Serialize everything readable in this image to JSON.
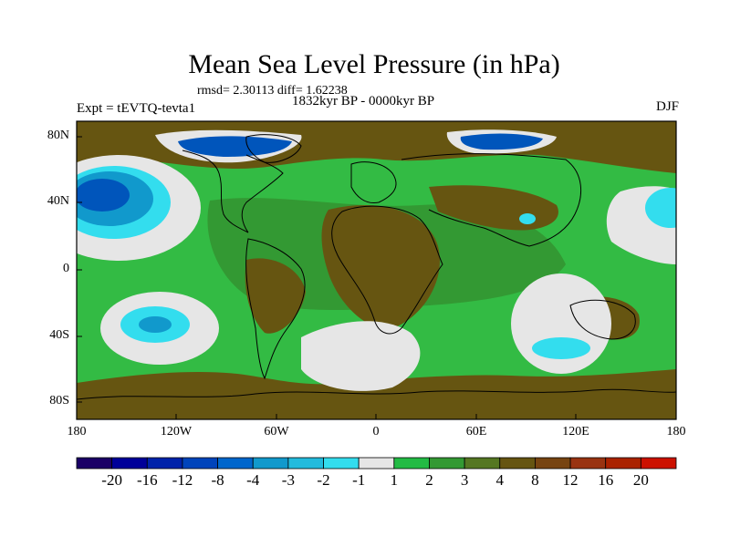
{
  "title": "Mean Sea Level Pressure (in hPa)",
  "stats_line": "rmsd= 2.30113 diff= 1.62238",
  "period": "1832kyr BP - 0000kyr BP",
  "experiment": "Expt = tEVTQ-tevta1",
  "season": "DJF",
  "lat_labels": [
    "80N",
    "40N",
    "0",
    "40S",
    "80S"
  ],
  "lon_labels": [
    "180",
    "120W",
    "60W",
    "0",
    "60E",
    "120E",
    "180"
  ],
  "colorbar": {
    "colors": [
      "#1a0066",
      "#000099",
      "#0022aa",
      "#0044bb",
      "#0066cc",
      "#1199cc",
      "#22bbdd",
      "#33ddee",
      "#e6e6e6",
      "#22bb44",
      "#339933",
      "#557722",
      "#665511",
      "#774411",
      "#993311",
      "#aa2200",
      "#cc1100"
    ],
    "labels": [
      "-20",
      "-16",
      "-12",
      "-8",
      "-4",
      "-3",
      "-2",
      "-1",
      "1",
      "2",
      "3",
      "4",
      "8",
      "12",
      "16",
      "20"
    ]
  },
  "colors": {
    "background_field": "#33bb44",
    "dark_green": "#339933",
    "brown": "#665511",
    "white": "#e6e6e6",
    "light_blue": "#33ddee",
    "mid_blue": "#1199cc",
    "deep_blue": "#0055bb",
    "coast": "#000000"
  }
}
